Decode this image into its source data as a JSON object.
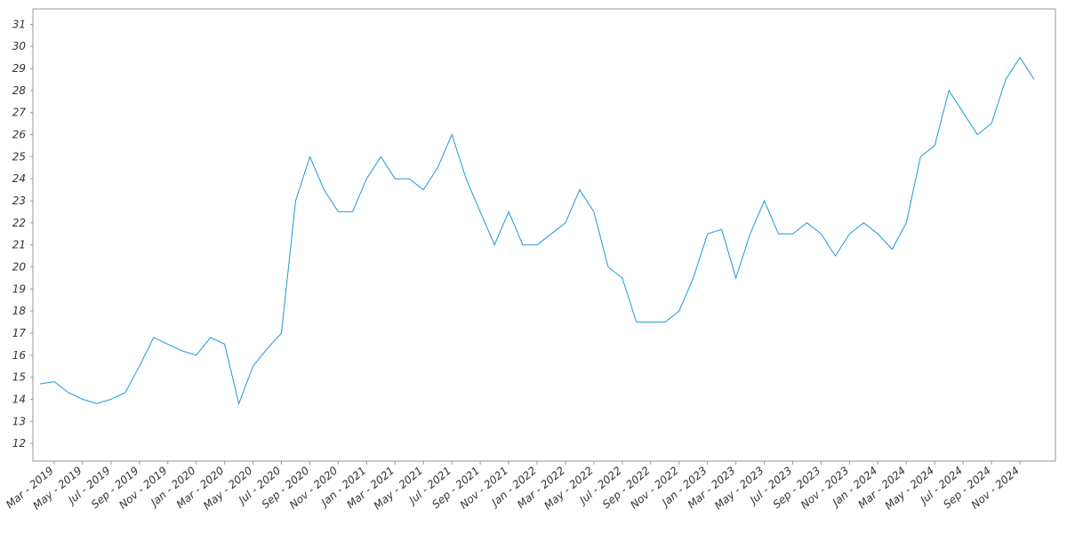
{
  "chart_data": {
    "type": "line",
    "x": [
      "2019-02",
      "2019-03",
      "2019-04",
      "2019-05",
      "2019-06",
      "2019-07",
      "2019-08",
      "2019-09",
      "2019-10",
      "2019-11",
      "2019-12",
      "2020-01",
      "2020-02",
      "2020-03",
      "2020-04",
      "2020-05",
      "2020-06",
      "2020-07",
      "2020-08",
      "2020-09",
      "2020-10",
      "2020-11",
      "2020-12",
      "2021-01",
      "2021-02",
      "2021-03",
      "2021-04",
      "2021-05",
      "2021-06",
      "2021-07",
      "2021-08",
      "2021-09",
      "2021-10",
      "2021-11",
      "2021-12",
      "2022-01",
      "2022-02",
      "2022-03",
      "2022-04",
      "2022-05",
      "2022-06",
      "2022-07",
      "2022-08",
      "2022-09",
      "2022-10",
      "2022-11",
      "2022-12",
      "2023-01",
      "2023-02",
      "2023-03",
      "2023-04",
      "2023-05",
      "2023-06",
      "2023-07",
      "2023-08",
      "2023-09",
      "2023-10",
      "2023-11",
      "2023-12",
      "2024-01",
      "2024-02",
      "2024-03",
      "2024-04",
      "2024-05",
      "2024-06",
      "2024-07",
      "2024-08",
      "2024-09",
      "2024-10",
      "2024-11",
      "2024-12"
    ],
    "values": [
      14.7,
      14.8,
      14.3,
      14.0,
      13.8,
      14.0,
      14.3,
      15.5,
      16.8,
      16.5,
      16.2,
      16.0,
      16.8,
      16.5,
      13.8,
      15.5,
      16.3,
      17.0,
      23.0,
      25.0,
      23.5,
      22.5,
      22.5,
      24.0,
      25.0,
      24.0,
      24.0,
      23.5,
      24.5,
      26.0,
      24.0,
      22.5,
      21.0,
      22.5,
      21.0,
      21.0,
      21.5,
      22.0,
      23.5,
      22.5,
      20.0,
      19.5,
      17.5,
      17.5,
      17.5,
      18.0,
      19.5,
      21.5,
      21.7,
      19.5,
      21.5,
      23.0,
      21.5,
      21.5,
      22.0,
      21.5,
      20.5,
      21.5,
      22.0,
      21.5,
      20.8,
      22.0,
      25.0,
      25.5,
      28.0,
      27.0,
      26.0,
      26.5,
      28.5,
      29.5,
      28.5
    ],
    "color": "#1a9bd7",
    "xlim": [
      "2019-02",
      "2025-01"
    ],
    "xticks": [
      {
        "value": "2019-03",
        "label": "Mar - 2019"
      },
      {
        "value": "2019-05",
        "label": "May - 2019"
      },
      {
        "value": "2019-07",
        "label": "Jul - 2019"
      },
      {
        "value": "2019-09",
        "label": "Sep - 2019"
      },
      {
        "value": "2019-11",
        "label": "Nov - 2019"
      },
      {
        "value": "2020-01",
        "label": "Jan - 2020"
      },
      {
        "value": "2020-03",
        "label": "Mar - 2020"
      },
      {
        "value": "2020-05",
        "label": "May - 2020"
      },
      {
        "value": "2020-07",
        "label": "Jul - 2020"
      },
      {
        "value": "2020-09",
        "label": "Sep - 2020"
      },
      {
        "value": "2020-11",
        "label": "Nov - 2020"
      },
      {
        "value": "2021-01",
        "label": "Jan - 2021"
      },
      {
        "value": "2021-03",
        "label": "Mar - 2021"
      },
      {
        "value": "2021-05",
        "label": "May - 2021"
      },
      {
        "value": "2021-07",
        "label": "Jul - 2021"
      },
      {
        "value": "2021-09",
        "label": "Sep - 2021"
      },
      {
        "value": "2021-11",
        "label": "Nov - 2021"
      },
      {
        "value": "2022-01",
        "label": "Jan - 2022"
      },
      {
        "value": "2022-03",
        "label": "Mar - 2022"
      },
      {
        "value": "2022-05",
        "label": "May - 2022"
      },
      {
        "value": "2022-07",
        "label": "Jul - 2022"
      },
      {
        "value": "2022-09",
        "label": "Sep - 2022"
      },
      {
        "value": "2022-11",
        "label": "Nov - 2022"
      },
      {
        "value": "2023-01",
        "label": "Jan - 2023"
      },
      {
        "value": "2023-03",
        "label": "Mar - 2023"
      },
      {
        "value": "2023-05",
        "label": "May - 2023"
      },
      {
        "value": "2023-07",
        "label": "Jul - 2023"
      },
      {
        "value": "2023-09",
        "label": "Sep - 2023"
      },
      {
        "value": "2023-11",
        "label": "Nov - 2023"
      },
      {
        "value": "2024-01",
        "label": "Jan - 2024"
      },
      {
        "value": "2024-03",
        "label": "Mar - 2024"
      },
      {
        "value": "2024-05",
        "label": "May - 2024"
      },
      {
        "value": "2024-07",
        "label": "Jul - 2024"
      },
      {
        "value": "2024-09",
        "label": "Sep - 2024"
      },
      {
        "value": "2024-11",
        "label": "Nov - 2024"
      }
    ],
    "ylim": [
      11.2,
      31.7
    ],
    "yticks": [
      12,
      13,
      14,
      15,
      16,
      17,
      18,
      19,
      20,
      21,
      22,
      23,
      24,
      25,
      26,
      27,
      28,
      29,
      30,
      31
    ]
  }
}
